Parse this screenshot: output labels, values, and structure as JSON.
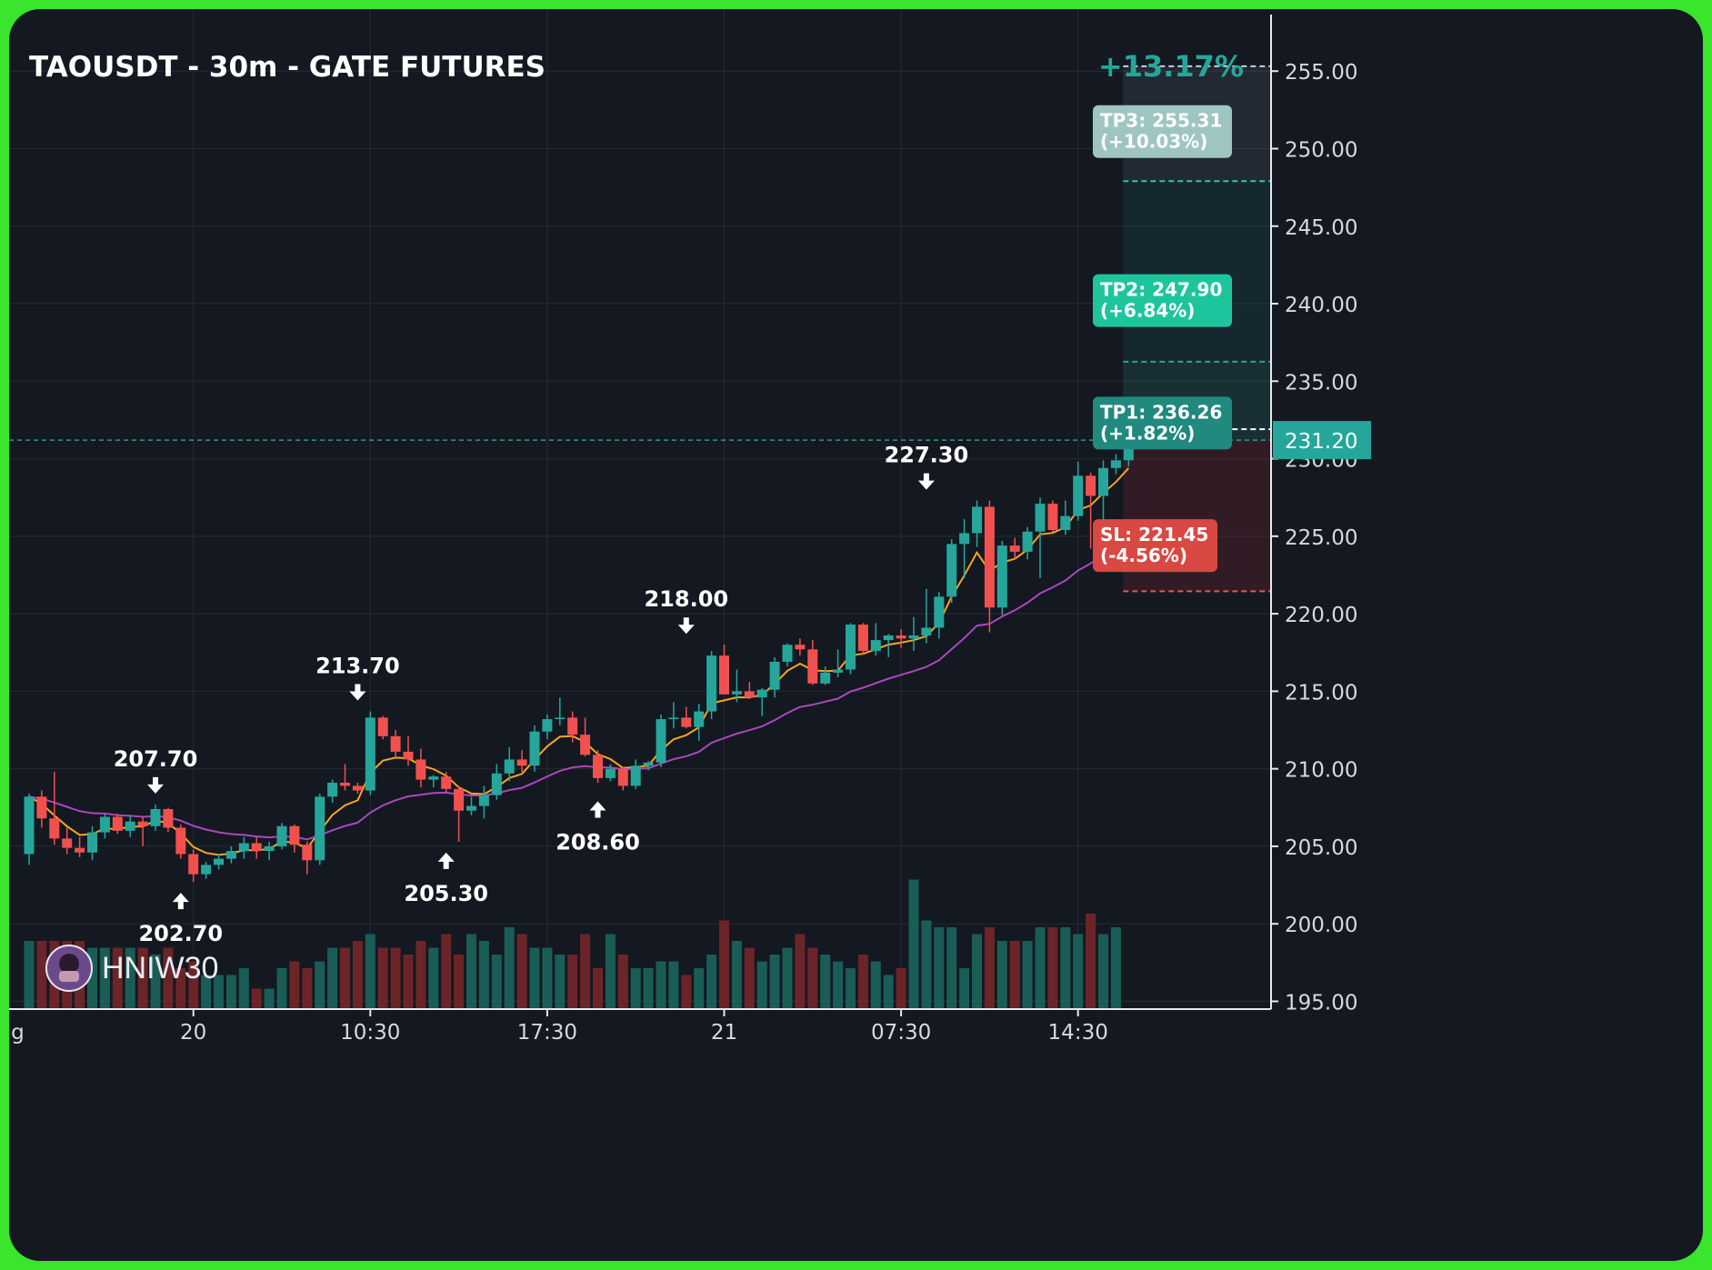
{
  "title": "TAOUSDT - 30m - GATE FUTURES",
  "gain_label": "+13.17%",
  "watermark": "HNIW30",
  "current_price_label": "231.20",
  "colors": {
    "background": "#141821",
    "grid": "#262b36",
    "up": "#26a69a",
    "down": "#f0514f",
    "vol_up": "#195d56",
    "vol_down": "#6b2528",
    "ema_fast": "#f5a623",
    "ema_slow": "#ab47bc",
    "tp3_box": "#9fc5c2",
    "tp2_box": "#1ec59c",
    "tp1_box": "#21897e",
    "sl_box": "#d94843",
    "frame": "#39e52d"
  },
  "targets": [
    {
      "name": "TP3",
      "line1": "TP3: 255.31",
      "line2": "(+10.03%)",
      "price": 255.31
    },
    {
      "name": "TP2",
      "line1": "TP2: 247.90",
      "line2": "(+6.84%)",
      "price": 247.9
    },
    {
      "name": "TP1",
      "line1": "TP1: 236.26",
      "line2": "(+1.82%)",
      "price": 236.26
    },
    {
      "name": "SL",
      "line1": "SL: 221.45",
      "line2": "(-4.56%)",
      "price": 221.45
    }
  ],
  "chart_data": {
    "type": "candlestick",
    "title": "TAOUSDT - 30m - GATE FUTURES",
    "x_ticks": [
      {
        "label": "g",
        "index": -0.9
      },
      {
        "label": "20",
        "index": 13
      },
      {
        "label": "10:30",
        "index": 27
      },
      {
        "label": "17:30",
        "index": 41
      },
      {
        "label": "21",
        "index": 55
      },
      {
        "label": "07:30",
        "index": 69
      },
      {
        "label": "14:30",
        "index": 83
      }
    ],
    "y_ticks": [
      "255.00",
      "250.00",
      "245.00",
      "240.00",
      "235.00",
      "230.00",
      "225.00",
      "220.00",
      "215.00",
      "210.00",
      "205.00",
      "200.00",
      "195.00"
    ],
    "ylim": [
      194.5,
      259
    ],
    "entry_price": 231.2,
    "zones": [
      {
        "name": "target-zone",
        "from": 221.45,
        "to": 231.2
      },
      {
        "name": "tp1-zone",
        "from": 231.2,
        "to": 236.26
      },
      {
        "name": "tp2-zone",
        "from": 236.26,
        "to": 247.9
      },
      {
        "name": "tp3-zone",
        "from": 247.9,
        "to": 255.31
      }
    ],
    "level_lines": [
      {
        "price": 255.31,
        "color": "#b8d8d5"
      },
      {
        "price": 247.9,
        "color": "#30c8a5"
      },
      {
        "price": 236.26,
        "color": "#2ea396"
      },
      {
        "price": 231.9,
        "color": "#ffffff"
      },
      {
        "price": 221.45,
        "color": "#f0514f"
      }
    ],
    "swing_annotations": [
      {
        "label": "207.70",
        "index": 10,
        "price": 207.7,
        "direction": "down"
      },
      {
        "label": "202.70",
        "index": 12,
        "price": 202.7,
        "direction": "up"
      },
      {
        "label": "213.70",
        "index": 26,
        "price": 213.7,
        "direction": "down"
      },
      {
        "label": "205.30",
        "index": 33,
        "price": 205.3,
        "direction": "up"
      },
      {
        "label": "208.60",
        "index": 45,
        "price": 208.6,
        "direction": "up"
      },
      {
        "label": "218.00",
        "index": 52,
        "price": 218.0,
        "direction": "down"
      },
      {
        "label": "227.30",
        "index": 71,
        "price": 227.3,
        "direction": "down"
      }
    ],
    "candles": [
      [
        204.5,
        208.4,
        203.8,
        208.2
      ],
      [
        208.2,
        208.6,
        206.2,
        206.8
      ],
      [
        206.8,
        209.8,
        205.1,
        205.5
      ],
      [
        205.5,
        206.2,
        204.5,
        204.9
      ],
      [
        204.9,
        205.6,
        204.3,
        204.6
      ],
      [
        204.6,
        206.3,
        204.1,
        205.9
      ],
      [
        205.9,
        207.1,
        205.5,
        206.9
      ],
      [
        206.9,
        207.1,
        205.8,
        206.0
      ],
      [
        206.0,
        207.0,
        205.6,
        206.6
      ],
      [
        206.6,
        206.9,
        205.0,
        206.3
      ],
      [
        206.3,
        207.7,
        206.0,
        207.4
      ],
      [
        207.4,
        207.5,
        205.9,
        206.2
      ],
      [
        206.2,
        206.4,
        204.2,
        204.5
      ],
      [
        204.5,
        204.8,
        202.7,
        203.2
      ],
      [
        203.2,
        204.0,
        202.9,
        203.8
      ],
      [
        203.8,
        204.5,
        203.5,
        204.2
      ],
      [
        204.2,
        205.0,
        203.9,
        204.7
      ],
      [
        204.7,
        205.6,
        204.2,
        205.2
      ],
      [
        205.2,
        205.6,
        204.2,
        204.7
      ],
      [
        204.7,
        205.3,
        204.1,
        205.0
      ],
      [
        205.0,
        206.5,
        204.8,
        206.3
      ],
      [
        206.3,
        206.4,
        204.6,
        205.1
      ],
      [
        205.1,
        205.3,
        203.2,
        204.1
      ],
      [
        204.1,
        208.4,
        203.8,
        208.2
      ],
      [
        208.2,
        209.3,
        207.8,
        209.1
      ],
      [
        209.1,
        210.3,
        208.6,
        208.9
      ],
      [
        208.9,
        209.1,
        208.4,
        208.6
      ],
      [
        208.6,
        213.7,
        208.3,
        213.3
      ],
      [
        213.3,
        213.4,
        211.9,
        212.1
      ],
      [
        212.1,
        212.5,
        210.8,
        211.1
      ],
      [
        211.1,
        212.1,
        210.2,
        210.6
      ],
      [
        210.6,
        211.3,
        208.8,
        209.3
      ],
      [
        209.3,
        209.6,
        208.8,
        209.5
      ],
      [
        209.5,
        209.8,
        208.5,
        208.7
      ],
      [
        208.7,
        208.9,
        205.3,
        207.3
      ],
      [
        207.3,
        208.2,
        207.0,
        207.6
      ],
      [
        207.6,
        208.9,
        206.8,
        208.3
      ],
      [
        208.3,
        210.3,
        208.0,
        209.7
      ],
      [
        209.7,
        211.4,
        209.2,
        210.6
      ],
      [
        210.6,
        211.2,
        209.8,
        210.2
      ],
      [
        210.2,
        212.8,
        209.8,
        212.4
      ],
      [
        212.4,
        213.5,
        211.9,
        213.2
      ],
      [
        213.2,
        214.6,
        212.8,
        213.3
      ],
      [
        213.3,
        213.7,
        211.7,
        212.2
      ],
      [
        212.2,
        213.3,
        210.8,
        210.9
      ],
      [
        210.9,
        211.2,
        209.1,
        209.4
      ],
      [
        209.4,
        210.3,
        209.2,
        210.0
      ],
      [
        210.0,
        210.1,
        208.6,
        208.9
      ],
      [
        208.9,
        210.6,
        208.7,
        210.2
      ],
      [
        210.2,
        210.5,
        209.9,
        210.4
      ],
      [
        210.4,
        213.5,
        210.1,
        213.2
      ],
      [
        213.2,
        214.3,
        212.6,
        213.3
      ],
      [
        213.3,
        214.0,
        212.6,
        212.7
      ],
      [
        212.7,
        214.2,
        211.8,
        213.7
      ],
      [
        213.7,
        217.6,
        213.2,
        217.3
      ],
      [
        217.3,
        218.0,
        214.8,
        214.8
      ],
      [
        214.8,
        216.4,
        214.3,
        215.0
      ],
      [
        215.0,
        215.6,
        214.5,
        214.6
      ],
      [
        214.6,
        215.2,
        213.4,
        215.1
      ],
      [
        215.1,
        217.2,
        214.6,
        216.9
      ],
      [
        216.9,
        218.1,
        216.6,
        218.0
      ],
      [
        218.0,
        218.4,
        217.3,
        217.7
      ],
      [
        217.7,
        218.3,
        215.4,
        215.5
      ],
      [
        215.5,
        216.6,
        215.4,
        216.2
      ],
      [
        216.2,
        217.7,
        215.9,
        216.4
      ],
      [
        216.4,
        219.4,
        216.1,
        219.3
      ],
      [
        219.3,
        219.4,
        217.4,
        217.6
      ],
      [
        217.6,
        219.4,
        217.3,
        218.3
      ],
      [
        218.3,
        218.7,
        217.2,
        218.6
      ],
      [
        218.6,
        219.0,
        217.8,
        218.4
      ],
      [
        218.4,
        219.8,
        217.6,
        218.6
      ],
      [
        218.6,
        221.6,
        218.1,
        219.1
      ],
      [
        219.1,
        221.4,
        218.4,
        221.1
      ],
      [
        221.1,
        224.8,
        220.7,
        224.5
      ],
      [
        224.5,
        226.1,
        222.3,
        225.2
      ],
      [
        225.2,
        227.3,
        224.3,
        226.9
      ],
      [
        226.9,
        227.3,
        218.8,
        220.4
      ],
      [
        220.4,
        224.7,
        219.9,
        224.4
      ],
      [
        224.4,
        224.9,
        223.5,
        224.0
      ],
      [
        224.0,
        225.6,
        223.5,
        225.3
      ],
      [
        225.3,
        227.5,
        222.3,
        227.1
      ],
      [
        227.1,
        227.3,
        225.3,
        225.4
      ],
      [
        225.4,
        227.3,
        225.1,
        226.3
      ],
      [
        226.3,
        229.8,
        226.0,
        228.9
      ],
      [
        228.9,
        229.1,
        224.2,
        227.6
      ],
      [
        227.6,
        229.9,
        223.4,
        229.4
      ],
      [
        229.4,
        230.3,
        229.0,
        229.9
      ],
      [
        229.9,
        233.2,
        229.5,
        231.2
      ]
    ],
    "volumes": [
      10,
      10,
      10,
      10,
      10,
      9,
      9,
      9,
      9,
      9,
      8,
      9,
      6,
      7,
      5,
      5,
      5,
      6,
      3,
      3,
      6,
      7,
      6,
      7,
      9,
      9,
      10,
      11,
      9,
      9,
      8,
      10,
      9,
      11,
      8,
      11,
      10,
      8,
      12,
      11,
      9,
      9,
      8,
      8,
      11,
      6,
      11,
      8,
      6,
      6,
      7,
      7,
      5,
      6,
      8,
      13,
      10,
      9,
      7,
      8,
      9,
      11,
      9,
      8,
      7,
      6,
      8,
      7,
      5,
      6,
      19,
      13,
      12,
      12,
      6,
      11,
      12,
      10,
      10,
      10,
      12,
      12,
      12,
      11,
      14,
      11,
      12
    ]
  }
}
